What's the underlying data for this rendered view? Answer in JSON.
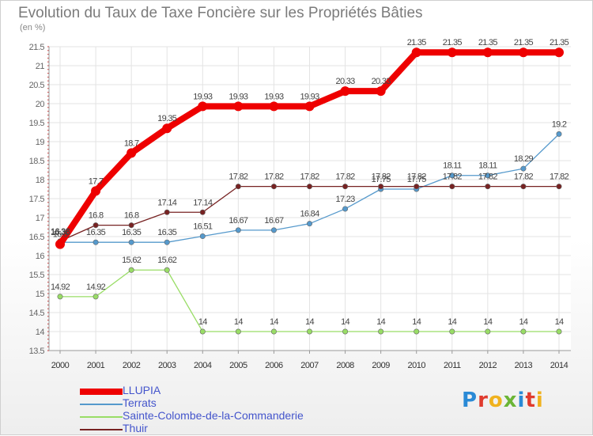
{
  "header": {
    "title": "Evolution du Taux de Taxe Foncière sur les Propriétés Bâties",
    "unit": "(en %)"
  },
  "logo": {
    "letters": [
      "P",
      "r",
      "o",
      "x",
      "i",
      "t",
      "i"
    ],
    "colors": [
      "#2a8ad6",
      "#e03b2e",
      "#f0b21e",
      "#6bb536",
      "#2a8ad6",
      "#e03b2e",
      "#f0b21e"
    ]
  },
  "chart_data": {
    "type": "line",
    "x": [
      2000,
      2001,
      2002,
      2003,
      2004,
      2005,
      2006,
      2007,
      2008,
      2009,
      2010,
      2011,
      2012,
      2013,
      2014
    ],
    "ylim": [
      13.5,
      21.5
    ],
    "yticks": [
      13.5,
      14,
      14.5,
      15,
      15.5,
      16,
      16.5,
      17,
      17.5,
      18,
      18.5,
      19,
      19.5,
      20,
      20.5,
      21,
      21.5
    ],
    "grid": true,
    "legend_position": "bottom-left",
    "series": [
      {
        "name": "LLUPIA",
        "color": "#ee0000",
        "values": [
          16.3,
          17.7,
          18.7,
          19.35,
          19.93,
          19.93,
          19.93,
          19.93,
          20.33,
          20.33,
          21.35,
          21.35,
          21.35,
          21.35,
          21.35
        ],
        "labels": [
          "16.3",
          "17.7",
          "18.7",
          "19.35",
          "19.93",
          "19.93",
          "19.93",
          "19.93",
          "20.33",
          "20.33",
          "21.35",
          "21.35",
          "21.35",
          "21.35",
          "21.35"
        ]
      },
      {
        "name": "Terrats",
        "color": "#5599cc",
        "values": [
          16.35,
          16.35,
          16.35,
          16.35,
          16.51,
          16.67,
          16.67,
          16.84,
          17.23,
          17.75,
          17.75,
          18.11,
          18.11,
          18.29,
          19.2
        ],
        "labels": [
          "16.35",
          "16.35",
          "16.35",
          "16.35",
          "16.51",
          "16.67",
          "16.67",
          "16.84",
          "17.23",
          "17.75",
          "17.75",
          "18.11",
          "18.11",
          "18.29",
          "19.2"
        ]
      },
      {
        "name": "Sainte-Colombe-de-la-Commanderie",
        "color": "#99dd66",
        "values": [
          14.92,
          14.92,
          15.62,
          15.62,
          14,
          14,
          14,
          14,
          14,
          14,
          14,
          14,
          14,
          14,
          14
        ],
        "labels": [
          "14.92",
          "14.92",
          "15.62",
          "15.62",
          "14",
          "14",
          "14",
          "14",
          "14",
          "14",
          "14",
          "14",
          "14",
          "14",
          "14"
        ]
      },
      {
        "name": "Thuir",
        "color": "#772222",
        "values": [
          16.38,
          16.8,
          16.8,
          17.14,
          17.14,
          17.82,
          17.82,
          17.82,
          17.82,
          17.82,
          17.82,
          17.82,
          17.82,
          17.82,
          17.82
        ],
        "labels": [
          "16.38",
          "16.8",
          "16.8",
          "17.14",
          "17.14",
          "17.82",
          "17.82",
          "17.82",
          "17.82",
          "17.82",
          "17.82",
          "17.82",
          "17.82",
          "17.82",
          "17.82"
        ]
      }
    ]
  }
}
